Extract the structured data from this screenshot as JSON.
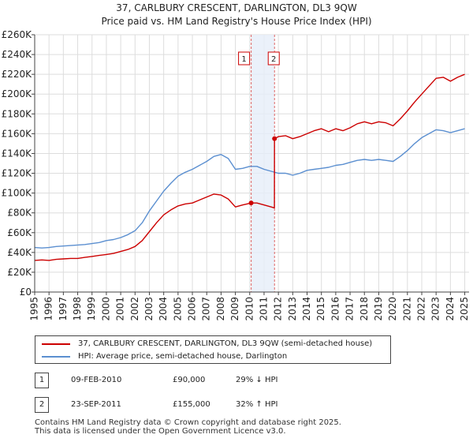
{
  "title_line1": "37, CARLBURY CRESCENT, DARLINGTON, DL3 9QW",
  "title_line2": "Price paid vs. HM Land Registry's House Price Index (HPI)",
  "chart_data": {
    "type": "line",
    "title": "37, CARLBURY CRESCENT, DARLINGTON, DL3 9QW — Price paid vs. HM Land Registry's House Price Index (HPI)",
    "xlabel": "",
    "ylabel": "",
    "xlim": [
      1995,
      2025.3
    ],
    "ylim": [
      0,
      260000
    ],
    "y_ticks": [
      0,
      20000,
      40000,
      60000,
      80000,
      100000,
      120000,
      140000,
      160000,
      180000,
      200000,
      220000,
      240000,
      260000
    ],
    "y_tick_labels": [
      "£0",
      "£20K",
      "£40K",
      "£60K",
      "£80K",
      "£100K",
      "£120K",
      "£140K",
      "£160K",
      "£180K",
      "£200K",
      "£220K",
      "£240K",
      "£260K"
    ],
    "x_ticks": [
      1995,
      1996,
      1997,
      1998,
      1999,
      2000,
      2001,
      2002,
      2003,
      2004,
      2005,
      2006,
      2007,
      2008,
      2009,
      2010,
      2011,
      2012,
      2013,
      2014,
      2015,
      2016,
      2017,
      2018,
      2019,
      2020,
      2021,
      2022,
      2023,
      2024,
      2025
    ],
    "x_tick_labels": [
      "1995",
      "1996",
      "1997",
      "1998",
      "1999",
      "2000",
      "2001",
      "2002",
      "2003",
      "2004",
      "2005",
      "2006",
      "2007",
      "2008",
      "2009",
      "2010",
      "2011",
      "2012",
      "2013",
      "2014",
      "2015",
      "2016",
      "2017",
      "2018",
      "2019",
      "2020",
      "2021",
      "2022",
      "2023",
      "2024",
      "2025"
    ],
    "grid": true,
    "shaded_range": [
      2010.1,
      2011.73
    ],
    "series": [
      {
        "name": "37, CARLBURY CRESCENT, DARLINGTON, DL3 9QW (semi-detached house)",
        "color": "#cc0000",
        "x": [
          1995.0,
          1995.5,
          1996.0,
          1996.5,
          1997.0,
          1997.5,
          1998.0,
          1998.5,
          1999.0,
          1999.5,
          2000.0,
          2000.5,
          2001.0,
          2001.5,
          2002.0,
          2002.5,
          2003.0,
          2003.5,
          2004.0,
          2004.5,
          2005.0,
          2005.5,
          2006.0,
          2006.5,
          2007.0,
          2007.5,
          2008.0,
          2008.5,
          2009.0,
          2009.5,
          2010.1,
          2010.5,
          2011.0,
          2011.5,
          2011.72,
          2011.73,
          2012.0,
          2012.5,
          2013.0,
          2013.5,
          2014.0,
          2014.5,
          2015.0,
          2015.5,
          2016.0,
          2016.5,
          2017.0,
          2017.5,
          2018.0,
          2018.5,
          2019.0,
          2019.5,
          2020.0,
          2020.5,
          2021.0,
          2021.5,
          2022.0,
          2022.5,
          2023.0,
          2023.5,
          2024.0,
          2024.5,
          2025.0
        ],
        "y": [
          32000,
          32500,
          32000,
          33000,
          33500,
          34000,
          34000,
          35000,
          36000,
          37000,
          38000,
          39000,
          41000,
          43000,
          46000,
          52000,
          61000,
          70000,
          78000,
          83000,
          87000,
          89000,
          90000,
          93000,
          96000,
          99000,
          98000,
          94000,
          86000,
          88000,
          90000,
          90000,
          88000,
          86000,
          85000,
          155000,
          157000,
          158000,
          155000,
          157000,
          160000,
          163000,
          165000,
          162000,
          165000,
          163000,
          166000,
          170000,
          172000,
          170000,
          172000,
          171000,
          168000,
          175000,
          183000,
          192000,
          200000,
          208000,
          216000,
          217000,
          213000,
          217000,
          220000
        ]
      },
      {
        "name": "HPI: Average price, semi-detached house, Darlington",
        "color": "#5b8fd0",
        "x": [
          1995.0,
          1995.5,
          1996.0,
          1996.5,
          1997.0,
          1997.5,
          1998.0,
          1998.5,
          1999.0,
          1999.5,
          2000.0,
          2000.5,
          2001.0,
          2001.5,
          2002.0,
          2002.5,
          2003.0,
          2003.5,
          2004.0,
          2004.5,
          2005.0,
          2005.5,
          2006.0,
          2006.5,
          2007.0,
          2007.5,
          2008.0,
          2008.5,
          2009.0,
          2009.5,
          2010.0,
          2010.5,
          2011.0,
          2011.5,
          2012.0,
          2012.5,
          2013.0,
          2013.5,
          2014.0,
          2014.5,
          2015.0,
          2015.5,
          2016.0,
          2016.5,
          2017.0,
          2017.5,
          2018.0,
          2018.5,
          2019.0,
          2019.5,
          2020.0,
          2020.5,
          2021.0,
          2021.5,
          2022.0,
          2022.5,
          2023.0,
          2023.5,
          2024.0,
          2024.5,
          2025.0
        ],
        "y": [
          45000,
          44500,
          45000,
          46000,
          46500,
          47000,
          47500,
          48000,
          49000,
          50000,
          52000,
          53000,
          55000,
          58000,
          62000,
          70000,
          82000,
          92000,
          102000,
          110000,
          117000,
          121000,
          124000,
          128000,
          132000,
          137000,
          139000,
          135000,
          124000,
          125000,
          127000,
          127000,
          124000,
          122000,
          120000,
          120000,
          118000,
          120000,
          123000,
          124000,
          125000,
          126000,
          128000,
          129000,
          131000,
          133000,
          134000,
          133000,
          134000,
          133000,
          132000,
          137000,
          143000,
          150000,
          156000,
          160000,
          164000,
          163000,
          161000,
          163000,
          165000
        ]
      }
    ],
    "markers": [
      {
        "label": "1",
        "x": 2010.1,
        "y": 90000
      },
      {
        "label": "2",
        "x": 2011.73,
        "y": 155000
      }
    ]
  },
  "legend": {
    "property_label": "37, CARLBURY CRESCENT, DARLINGTON, DL3 9QW (semi-detached house)",
    "hpi_label": "HPI: Average price, semi-detached house, Darlington"
  },
  "transactions": [
    {
      "num": "1",
      "date": "09-FEB-2010",
      "price": "£90,000",
      "hpi": "29% ↓ HPI"
    },
    {
      "num": "2",
      "date": "23-SEP-2011",
      "price": "£155,000",
      "hpi": "32% ↑ HPI"
    }
  ],
  "footer": {
    "line1": "Contains HM Land Registry data © Crown copyright and database right 2025.",
    "line2": "This data is licensed under the Open Government Licence v3.0."
  }
}
